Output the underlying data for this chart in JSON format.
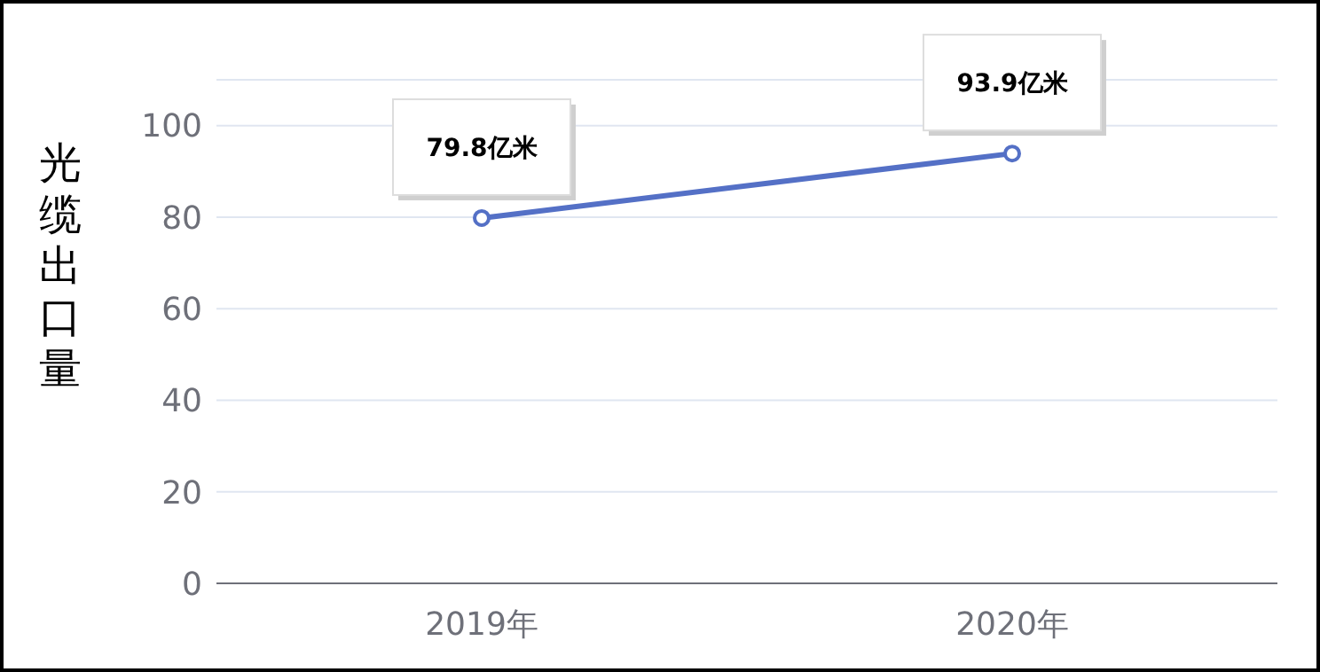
{
  "chart_data": {
    "type": "line",
    "ylabel": "光缆出口量",
    "categories": [
      "2019年",
      "2020年"
    ],
    "series": [
      {
        "color": "#5470c6",
        "values": [
          79.8,
          93.9
        ],
        "value_labels": [
          "79.8亿米",
          "93.9亿米"
        ]
      }
    ],
    "ylim": [
      0,
      110
    ],
    "yticks": [
      0,
      20,
      40,
      60,
      80,
      100
    ],
    "grid": "y",
    "marker": "circle",
    "line_style": "solid",
    "legend": false
  }
}
